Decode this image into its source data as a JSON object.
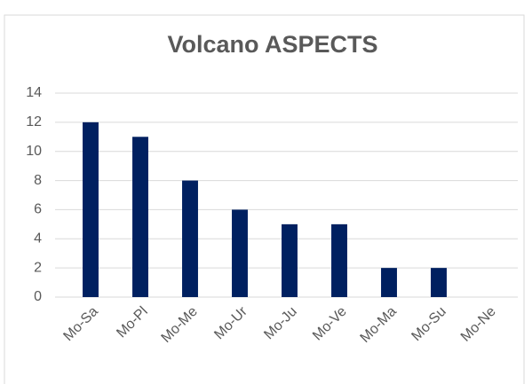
{
  "chart_data": {
    "type": "bar",
    "title": "Volcano ASPECTS",
    "categories": [
      "Mo-Sa",
      "Mo-Pl",
      "Mo-Me",
      "Mo-Ur",
      "Mo-Ju",
      "Mo-Ve",
      "Mo-Ma",
      "Mo-Su",
      "Mo-Ne"
    ],
    "values": [
      12,
      11,
      8,
      6,
      5,
      5,
      2,
      2,
      0
    ],
    "color": "#002060",
    "ylim": [
      0,
      14
    ],
    "yticks": [
      0,
      2,
      4,
      6,
      8,
      10,
      12,
      14
    ],
    "grid": true
  }
}
